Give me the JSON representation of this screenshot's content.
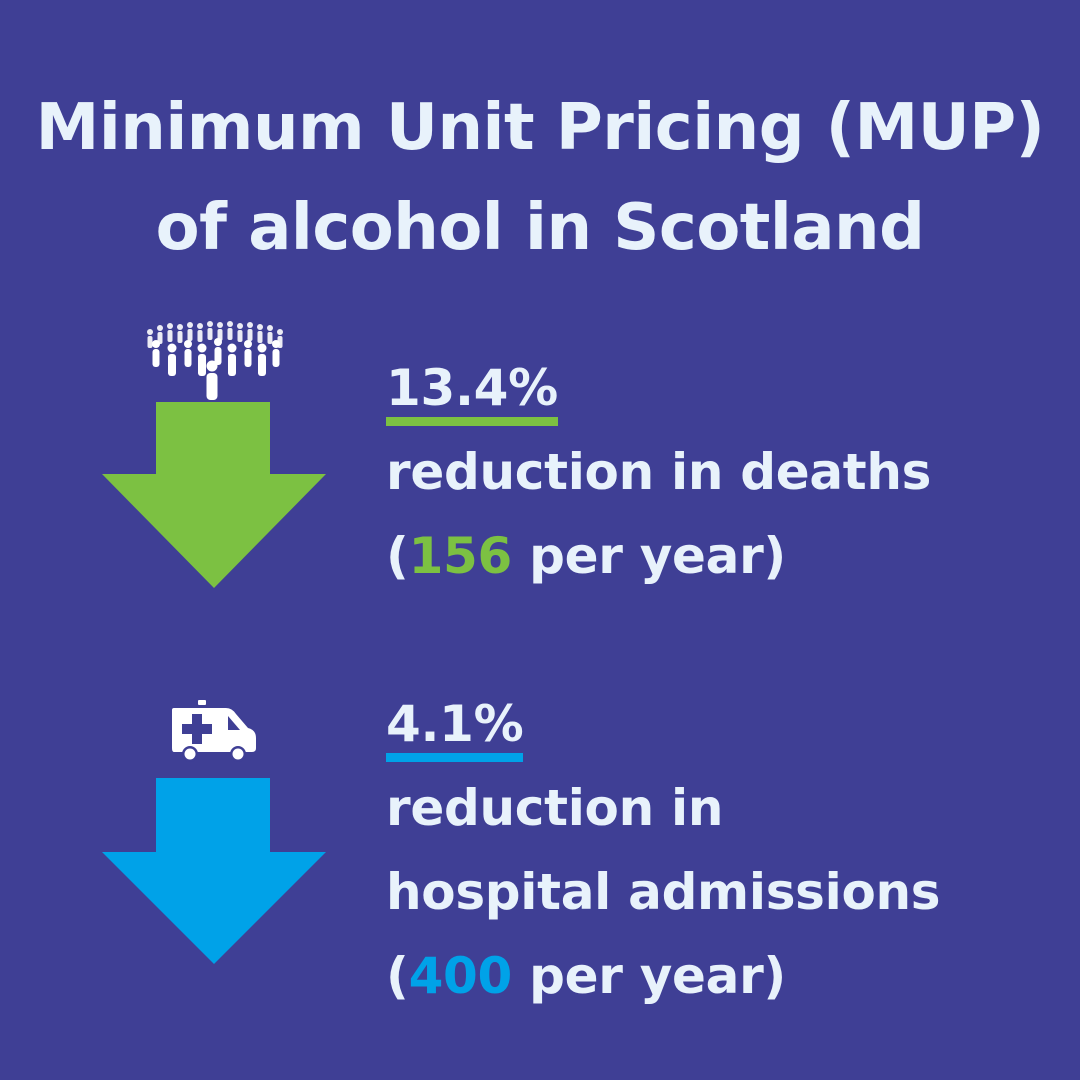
{
  "title": {
    "line1": "Minimum Unit Pricing (MUP)",
    "line2": "of alcohol in Scotland"
  },
  "colors": {
    "background": "#3f3f95",
    "text": "#e8f2fb",
    "green": "#7cc142",
    "blue": "#00a2e8"
  },
  "stats": [
    {
      "percent": "13.4%",
      "lines": [
        "reduction in deaths"
      ],
      "count_prefix": "(",
      "count": "156",
      "count_suffix": " per year)",
      "icon": "crowd-icon",
      "arrow": "down-arrow-icon"
    },
    {
      "percent": "4.1%",
      "lines": [
        "reduction in",
        "hospital admissions"
      ],
      "count_prefix": "(",
      "count": "400",
      "count_suffix": " per year)",
      "icon": "ambulance-icon",
      "arrow": "down-arrow-icon"
    }
  ]
}
